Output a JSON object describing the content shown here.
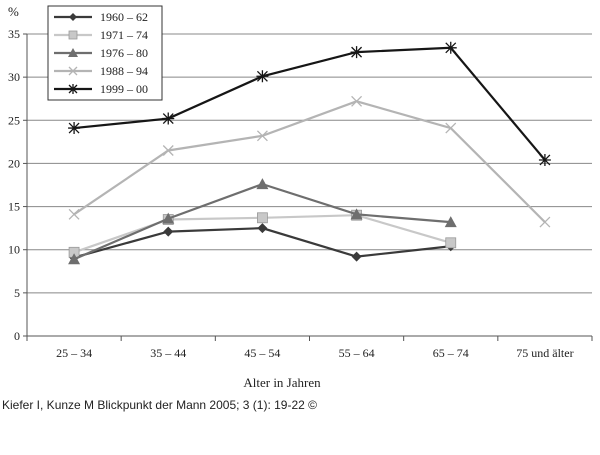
{
  "chart_data": {
    "type": "line",
    "ylabel": "%",
    "xlabel": "Alter in Jahren",
    "ylim": [
      0,
      35
    ],
    "yticks": [
      0,
      5,
      10,
      15,
      20,
      25,
      30,
      35
    ],
    "grid": true,
    "legend_placement": "top-left",
    "categories": [
      "25 – 34",
      "35 – 44",
      "45 – 54",
      "55 – 64",
      "65 – 74",
      "75 und älter"
    ],
    "series": [
      {
        "name": "1960 – 62",
        "marker": "diamond",
        "color": "#3a3a3a",
        "values": [
          9.1,
          12.1,
          12.5,
          9.2,
          10.4,
          null
        ]
      },
      {
        "name": "1971 – 74",
        "marker": "square",
        "color": "#c8c8c8",
        "values": [
          9.7,
          13.5,
          13.7,
          14.0,
          10.8,
          null
        ]
      },
      {
        "name": "1976 – 80",
        "marker": "triangle",
        "color": "#6e6e6e",
        "values": [
          8.9,
          13.6,
          17.6,
          14.1,
          13.2,
          null
        ]
      },
      {
        "name": "1988 – 94",
        "marker": "cross",
        "color": "#b4b4b4",
        "values": [
          14.1,
          21.5,
          23.2,
          27.2,
          24.1,
          13.2
        ]
      },
      {
        "name": "1999 – 00",
        "marker": "asterisk",
        "color": "#161616",
        "values": [
          24.1,
          25.2,
          30.1,
          32.9,
          33.4,
          20.4
        ]
      }
    ]
  },
  "caption": "Kiefer I, Kunze M Blickpunkt der Mann 2005; 3 (1): 19-22 ©"
}
